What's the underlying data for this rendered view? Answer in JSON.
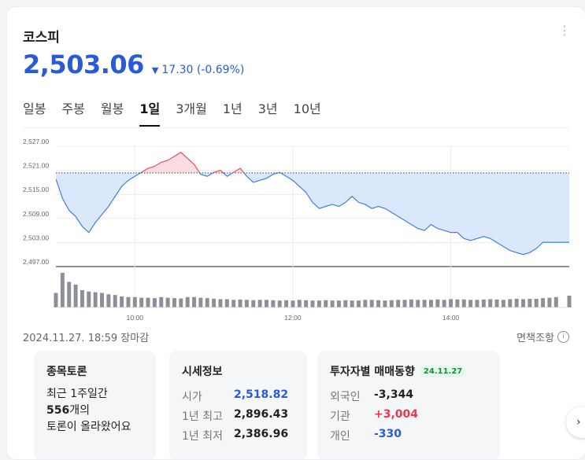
{
  "header": {
    "title": "코스피",
    "price": "2,503.06",
    "direction_icon": "triangle-down-icon",
    "change": "17.30 (-0.69%)",
    "menu_icon": "more-vertical-icon"
  },
  "tabs": [
    "일봉",
    "주봉",
    "월봉",
    "1일",
    "3개월",
    "1년",
    "3년",
    "10년"
  ],
  "active_tab": "1일",
  "chart_data": {
    "type": "line",
    "yticks": [
      "2,527.00",
      "2,521.00",
      "2,515.00",
      "2,509.00",
      "2,503.00",
      "2,497.00"
    ],
    "xticks": [
      "10:00",
      "12:00",
      "14:00"
    ],
    "ylim": [
      2497,
      2527
    ],
    "prev_close": 2520.36,
    "x": [
      "09:00",
      "09:05",
      "09:10",
      "09:15",
      "09:20",
      "09:25",
      "09:30",
      "09:35",
      "09:40",
      "09:45",
      "09:50",
      "09:55",
      "10:00",
      "10:05",
      "10:10",
      "10:15",
      "10:20",
      "10:25",
      "10:30",
      "10:35",
      "10:40",
      "10:45",
      "10:50",
      "10:55",
      "11:00",
      "11:05",
      "11:10",
      "11:15",
      "11:20",
      "11:25",
      "11:30",
      "11:35",
      "11:40",
      "11:45",
      "11:50",
      "11:55",
      "12:00",
      "12:05",
      "12:10",
      "12:15",
      "12:20",
      "12:25",
      "12:30",
      "12:35",
      "12:40",
      "12:45",
      "12:50",
      "12:55",
      "13:00",
      "13:05",
      "13:10",
      "13:15",
      "13:20",
      "13:25",
      "13:30",
      "13:35",
      "13:40",
      "13:45",
      "13:50",
      "13:55",
      "14:00",
      "14:05",
      "14:10",
      "14:15",
      "14:20",
      "14:25",
      "14:30",
      "14:35",
      "14:40",
      "14:45",
      "14:50",
      "14:55",
      "15:00",
      "15:05",
      "15:10",
      "15:15",
      "15:20",
      "15:25",
      "15:30"
    ],
    "values": [
      2518.8,
      2514,
      2511,
      2509.5,
      2507,
      2505.5,
      2508,
      2510,
      2512,
      2514.5,
      2517,
      2518.5,
      2519.5,
      2520.5,
      2521.5,
      2522,
      2523,
      2523.5,
      2524.5,
      2525.5,
      2524,
      2522.5,
      2520,
      2519.5,
      2520.5,
      2521,
      2519.5,
      2520.5,
      2521.5,
      2519.5,
      2518,
      2518.5,
      2519,
      2520,
      2520.5,
      2519.5,
      2518.5,
      2517,
      2515.5,
      2513,
      2511.5,
      2512,
      2512.5,
      2512,
      2513,
      2514.5,
      2513,
      2512.5,
      2511.5,
      2512,
      2511.5,
      2510.5,
      2509.5,
      2508.5,
      2507.5,
      2506.5,
      2506,
      2507.5,
      2506.5,
      2506,
      2505.5,
      2505.5,
      2504,
      2503.5,
      2504,
      2504.5,
      2504,
      2503,
      2502,
      2501,
      2500.5,
      2500,
      2500.5,
      2501.5,
      2503.06,
      2503.06,
      2503.06,
      2503.06,
      2503.06
    ],
    "volume": [
      0.42,
      1.0,
      0.74,
      0.66,
      0.5,
      0.46,
      0.44,
      0.42,
      0.38,
      0.36,
      0.32,
      0.3,
      0.3,
      0.28,
      0.28,
      0.27,
      0.3,
      0.28,
      0.27,
      0.26,
      0.3,
      0.3,
      0.28,
      0.27,
      0.25,
      0.24,
      0.24,
      0.22,
      0.23,
      0.22,
      0.21,
      0.22,
      0.22,
      0.21,
      0.2,
      0.21,
      0.2,
      0.22,
      0.21,
      0.2,
      0.2,
      0.21,
      0.2,
      0.2,
      0.21,
      0.2,
      0.2,
      0.22,
      0.22,
      0.21,
      0.2,
      0.21,
      0.22,
      0.22,
      0.23,
      0.22,
      0.22,
      0.22,
      0.23,
      0.22,
      0.24,
      0.23,
      0.23,
      0.22,
      0.22,
      0.23,
      0.24,
      0.23,
      0.22,
      0.24,
      0.25,
      0.24,
      0.25,
      0.25,
      0.27,
      0.28,
      0.3,
      0,
      0.34
    ],
    "up_color": "#e05163",
    "down_color": "#3f7fe0"
  },
  "status": {
    "asof": "2024.11.27. 18:59 장마감",
    "disclaimer": "면책조항",
    "info_icon": "info-circle-icon"
  },
  "discussion": {
    "title": "종목토론",
    "line1": "최근 1주일간",
    "count": "556",
    "count_suffix": "개의",
    "line3": "토론이 올라왔어요"
  },
  "market_info": {
    "title": "시세정보",
    "rows": [
      {
        "label": "시가",
        "value": "2,518.82"
      },
      {
        "label": "1년 최고",
        "value": "2,896.43"
      },
      {
        "label": "1년 최저",
        "value": "2,386.96"
      }
    ]
  },
  "investors": {
    "title": "투자자별 매매동향",
    "date": "24.11.27",
    "rows": [
      {
        "label": "외국인",
        "value": "-3,344"
      },
      {
        "label": "기관",
        "value": "+3,004"
      },
      {
        "label": "개인",
        "value": "-330"
      }
    ]
  },
  "next_icon": "chevron-right-icon"
}
